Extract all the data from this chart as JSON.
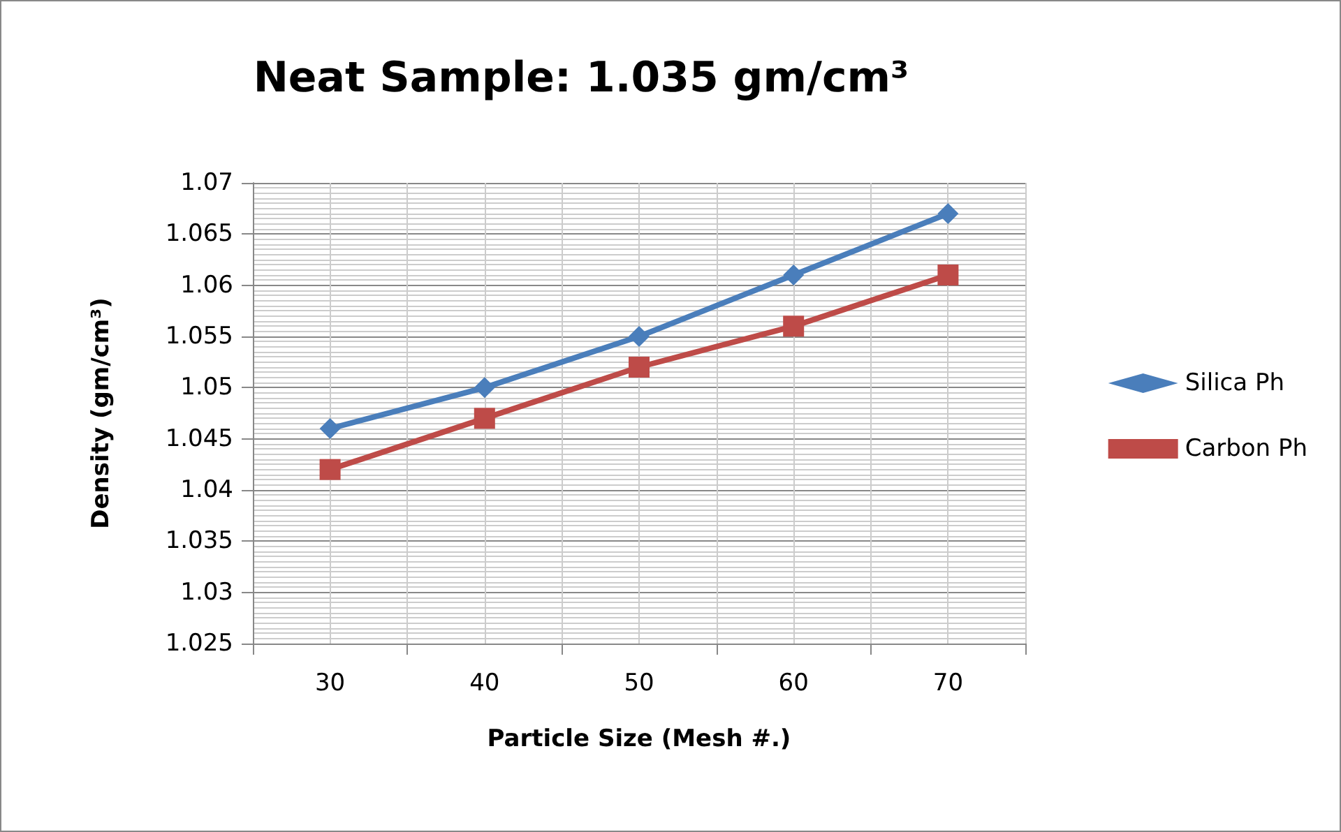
{
  "chart_data": {
    "type": "line",
    "title": "Neat Sample: 1.035 gm/cm³",
    "xlabel": "Particle Size (Mesh #.)",
    "ylabel": "Density (gm/cm³)",
    "categories": [
      "30",
      "40",
      "50",
      "60",
      "70"
    ],
    "series": [
      {
        "name": "Silica Ph",
        "color": "#4a7ebb",
        "marker": "diamond",
        "values": [
          1.046,
          1.05,
          1.055,
          1.061,
          1.067
        ]
      },
      {
        "name": "Carbon Ph",
        "color": "#be4b48",
        "marker": "square",
        "values": [
          1.042,
          1.047,
          1.052,
          1.056,
          1.061
        ]
      }
    ],
    "ylim": [
      1.025,
      1.07
    ],
    "yticks": [
      1.025,
      1.03,
      1.035,
      1.04,
      1.045,
      1.05,
      1.055,
      1.06,
      1.065,
      1.07
    ],
    "grid": true,
    "legend": "right",
    "line_style": "solid"
  }
}
